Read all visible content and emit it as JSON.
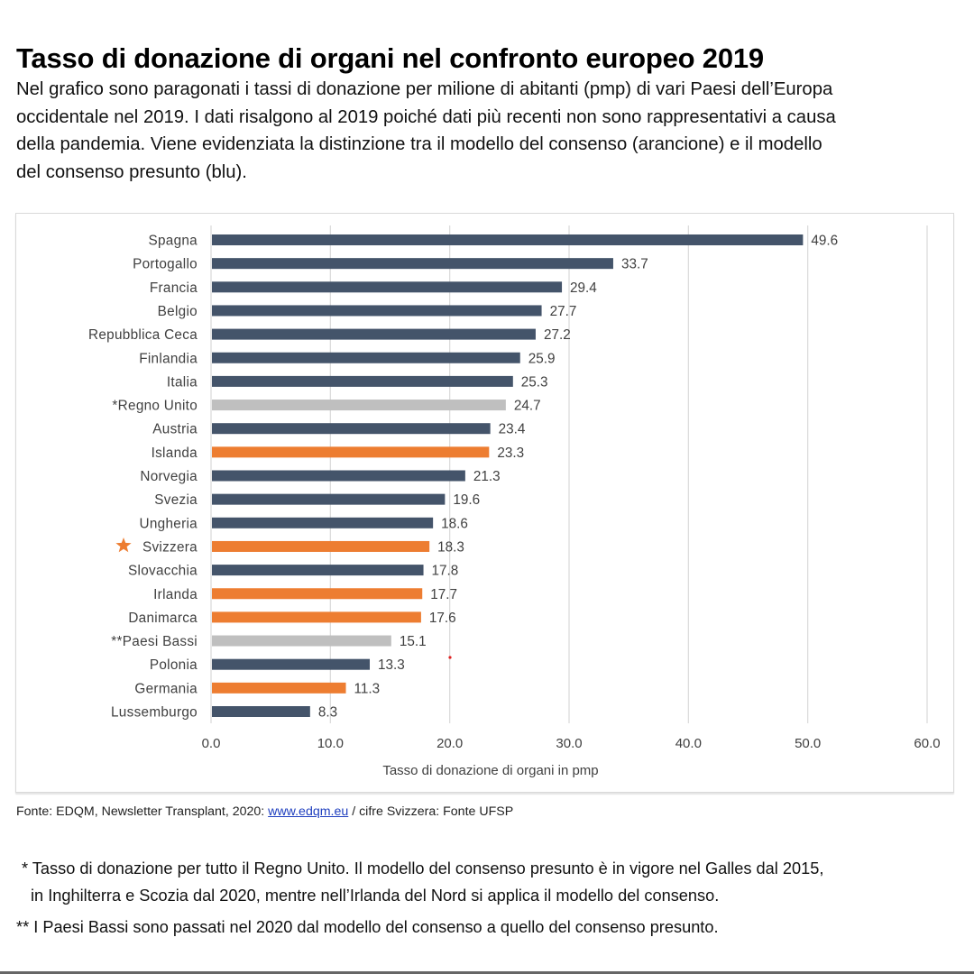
{
  "header": {
    "title": "Tasso di donazione di organi nel confronto europeo 2019",
    "intro_lines": [
      "Nel grafico sono paragonati i tassi di donazione per milione di abitanti (pmp) di vari Paesi dell’Europa",
      "occidentale nel 2019. I dati risalgono al 2019 poiché dati più recenti non sono rappresentativi a causa",
      "della pandemia. Viene evidenziata la distinzione tra il modello del consenso (arancione) e il modello",
      "del consenso presunto (blu)."
    ]
  },
  "colors": {
    "presumed_consent": "#44546a",
    "consent": "#ed7d31",
    "other": "#bfbfbf",
    "gridline": "#d9d9d9",
    "highlight_star": "#ed7d31"
  },
  "chart_data": {
    "type": "bar",
    "orientation": "horizontal",
    "title": "",
    "xlabel": "Tasso di donazione di organi in pmp",
    "ylabel": "",
    "xlim": [
      0,
      60
    ],
    "xticks": [
      0,
      10,
      20,
      30,
      40,
      50,
      60
    ],
    "xtick_labels": [
      "0.0",
      "10.0",
      "20.0",
      "30.0",
      "40.0",
      "50.0",
      "60.0"
    ],
    "grid": true,
    "categories": [
      "Spagna",
      "Portogallo",
      "Francia",
      "Belgio",
      "Repubblica Ceca",
      "Finlandia",
      "Italia",
      "*Regno Unito",
      "Austria",
      "Islanda",
      "Norvegia",
      "Svezia",
      "Ungheria",
      "Svizzera",
      "Slovacchia",
      "Irlanda",
      "Danimarca",
      "**Paesi Bassi",
      "Polonia",
      "Germania",
      "Lussemburgo"
    ],
    "values": [
      49.6,
      33.7,
      29.4,
      27.7,
      27.2,
      25.9,
      25.3,
      24.7,
      23.4,
      23.3,
      21.3,
      19.6,
      18.6,
      18.3,
      17.8,
      17.7,
      17.6,
      15.1,
      13.3,
      11.3,
      8.3
    ],
    "value_labels": [
      "49.6",
      "33.7",
      "29.4",
      "27.7",
      "27.2",
      "25.9",
      "25.3",
      "24.7",
      "23.4",
      "23.3",
      "21.3",
      "19.6",
      "18.6",
      "18.3",
      "17.8",
      "17.7",
      "17.6",
      "15.1",
      "13.3",
      "11.3",
      "8.3"
    ],
    "groups": [
      "presumed_consent",
      "presumed_consent",
      "presumed_consent",
      "presumed_consent",
      "presumed_consent",
      "presumed_consent",
      "presumed_consent",
      "other",
      "presumed_consent",
      "consent",
      "presumed_consent",
      "presumed_consent",
      "presumed_consent",
      "consent",
      "presumed_consent",
      "consent",
      "consent",
      "other",
      "presumed_consent",
      "consent",
      "presumed_consent"
    ],
    "highlighted_category": "Svizzera",
    "highlight_icon": "star-icon"
  },
  "footer": {
    "source_prefix": "Fonte: EDQM, Newsletter Transplant, 2020: ",
    "source_link": "www.edqm.eu",
    "source_suffix": " / cifre Svizzera: Fonte UFSP",
    "note1_lines": [
      "* Tasso di donazione per tutto il Regno Unito. Il modello del consenso presunto è in vigore nel Galles dal 2015,",
      "in Inghilterra e Scozia dal 2020, mentre nell’Irlanda del Nord si applica il modello del consenso."
    ],
    "note2": "** I Paesi Bassi sono passati nel 2020 dal modello del consenso a quello del consenso presunto."
  }
}
